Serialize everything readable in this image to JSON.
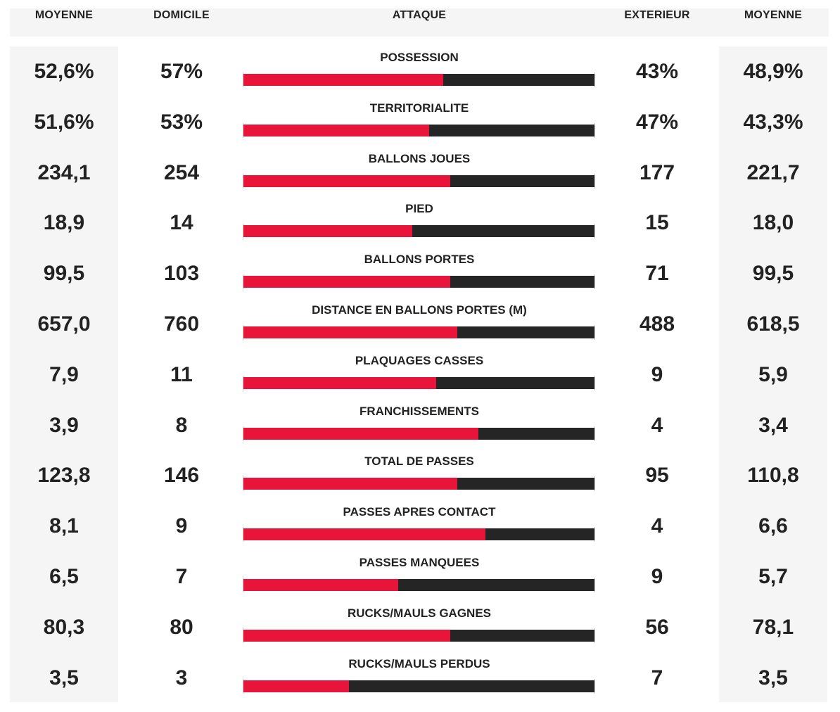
{
  "header": {
    "home_avg": "MOYENNE",
    "home": "DOMICILE",
    "category": "ATTAQUE",
    "away": "EXTERIEUR",
    "away_avg": "MOYENNE"
  },
  "colors": {
    "home_bar": "#e8143a",
    "away_bar": "#252525",
    "panel": "#f5f5f5"
  },
  "chart_data": {
    "type": "bar",
    "title": "ATTAQUE",
    "categories": [
      "POSSESSION",
      "TERRITORIALITE",
      "BALLONS JOUES",
      "PIED",
      "BALLONS PORTES",
      "DISTANCE EN BALLONS PORTES (M)",
      "PLAQUAGES CASSES",
      "FRANCHISSEMENTS",
      "TOTAL DE PASSES",
      "PASSES APRES CONTACT",
      "PASSES MANQUEES",
      "RUCKS/MAULS GAGNES",
      "RUCKS/MAULS PERDUS"
    ],
    "rows": [
      {
        "label": "POSSESSION",
        "home_avg": "52,6%",
        "home": "57%",
        "away": "43%",
        "away_avg": "48,9%",
        "home_share": 0.57
      },
      {
        "label": "TERRITORIALITE",
        "home_avg": "51,6%",
        "home": "53%",
        "away": "47%",
        "away_avg": "43,3%",
        "home_share": 0.53
      },
      {
        "label": "BALLONS JOUES",
        "home_avg": "234,1",
        "home": "254",
        "away": "177",
        "away_avg": "221,7",
        "home_share": 0.59
      },
      {
        "label": "PIED",
        "home_avg": "18,9",
        "home": "14",
        "away": "15",
        "away_avg": "18,0",
        "home_share": 0.48
      },
      {
        "label": "BALLONS PORTES",
        "home_avg": "99,5",
        "home": "103",
        "away": "71",
        "away_avg": "99,5",
        "home_share": 0.59
      },
      {
        "label": "DISTANCE EN BALLONS PORTES (M)",
        "home_avg": "657,0",
        "home": "760",
        "away": "488",
        "away_avg": "618,5",
        "home_share": 0.61
      },
      {
        "label": "PLAQUAGES CASSES",
        "home_avg": "7,9",
        "home": "11",
        "away": "9",
        "away_avg": "5,9",
        "home_share": 0.55
      },
      {
        "label": "FRANCHISSEMENTS",
        "home_avg": "3,9",
        "home": "8",
        "away": "4",
        "away_avg": "3,4",
        "home_share": 0.67
      },
      {
        "label": "TOTAL DE PASSES",
        "home_avg": "123,8",
        "home": "146",
        "away": "95",
        "away_avg": "110,8",
        "home_share": 0.61
      },
      {
        "label": "PASSES APRES CONTACT",
        "home_avg": "8,1",
        "home": "9",
        "away": "4",
        "away_avg": "6,6",
        "home_share": 0.69
      },
      {
        "label": "PASSES MANQUEES",
        "home_avg": "6,5",
        "home": "7",
        "away": "9",
        "away_avg": "5,7",
        "home_share": 0.44
      },
      {
        "label": "RUCKS/MAULS GAGNES",
        "home_avg": "80,3",
        "home": "80",
        "away": "56",
        "away_avg": "78,1",
        "home_share": 0.59
      },
      {
        "label": "RUCKS/MAULS PERDUS",
        "home_avg": "3,5",
        "home": "3",
        "away": "7",
        "away_avg": "3,5",
        "home_share": 0.3
      }
    ]
  }
}
